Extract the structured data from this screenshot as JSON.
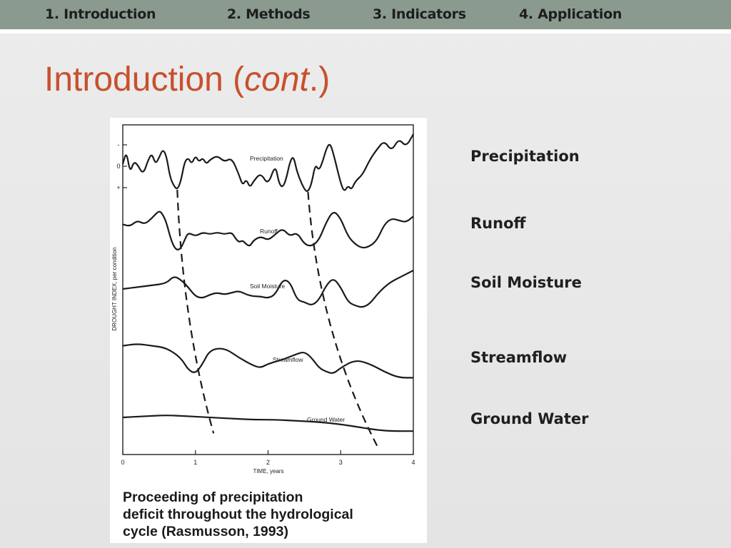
{
  "nav": {
    "items": [
      {
        "label": "1. Introduction",
        "active": true
      },
      {
        "label": "2. Methods",
        "active": false
      },
      {
        "label": "3. Indicators",
        "active": false
      },
      {
        "label": "4. Application",
        "active": false
      }
    ]
  },
  "title": {
    "main": "Introduction (",
    "italic": "cont",
    "tail": ".)"
  },
  "side_labels": [
    "Precipitation",
    "Runoff",
    "Soil Moisture",
    "Streamflow",
    "Ground Water"
  ],
  "figure": {
    "caption_lines": [
      "Proceeding of precipitation",
      "deficit throughout the hydrological",
      "cycle (Rasmusson, 1993)"
    ]
  },
  "colors": {
    "nav_bar": "#8a9a8f",
    "nav_active": "#f2e21a",
    "title": "#c8502e"
  },
  "chart_data": {
    "type": "line",
    "xlabel": "TIME, years",
    "ylabel": "DROUGHT INDEX, per condition",
    "xlim": [
      0,
      4
    ],
    "x_ticks": [
      "0",
      "1",
      "2",
      "3",
      "4"
    ],
    "y_ticks": [
      "+",
      "0",
      "-"
    ],
    "grid": false,
    "series": [
      {
        "name": "Precipitation",
        "x": [
          0,
          0.05,
          0.1,
          0.15,
          0.2,
          0.28,
          0.35,
          0.4,
          0.45,
          0.5,
          0.55,
          0.6,
          0.65,
          0.7,
          0.75,
          0.8,
          0.85,
          0.9,
          0.95,
          1.0,
          1.05,
          1.1,
          1.15,
          1.2,
          1.3,
          1.4,
          1.5,
          1.6,
          1.65,
          1.7,
          1.75,
          1.8,
          1.9,
          2.0,
          2.1,
          2.15,
          2.2,
          2.25,
          2.3,
          2.35,
          2.4,
          2.5,
          2.55,
          2.6,
          2.65,
          2.7,
          2.75,
          2.8,
          2.85,
          2.9,
          3.0,
          3.05,
          3.1,
          3.15,
          3.2,
          3.3,
          3.4,
          3.5,
          3.6,
          3.7,
          3.8,
          3.9,
          4.0
        ],
        "y": [
          0.1,
          0.7,
          -0.3,
          0.2,
          0.1,
          -0.4,
          0.3,
          0.6,
          0.1,
          0.4,
          0.8,
          0.5,
          -0.5,
          -0.9,
          -1.1,
          -0.7,
          0.2,
          0.4,
          0.1,
          0.5,
          0.2,
          0.4,
          0.1,
          0.3,
          0.5,
          0.2,
          0.4,
          -0.4,
          -0.9,
          -0.6,
          -1.0,
          -0.7,
          -0.3,
          -0.9,
          0.1,
          -0.8,
          -1.0,
          -0.6,
          0.2,
          0.5,
          -0.3,
          -1.1,
          -1.2,
          -0.8,
          0.1,
          -0.2,
          0.2,
          0.8,
          1.1,
          0.6,
          -0.8,
          -1.2,
          -0.9,
          -1.1,
          -0.7,
          -0.4,
          0.3,
          0.8,
          1.2,
          0.7,
          1.3,
          0.9,
          1.5
        ]
      },
      {
        "name": "Runoff",
        "x": [
          0,
          0.1,
          0.2,
          0.3,
          0.4,
          0.5,
          0.55,
          0.6,
          0.65,
          0.7,
          0.75,
          0.8,
          0.85,
          0.9,
          1.0,
          1.1,
          1.2,
          1.3,
          1.4,
          1.5,
          1.55,
          1.6,
          1.65,
          1.7,
          1.75,
          1.8,
          1.9,
          2.0,
          2.1,
          2.2,
          2.3,
          2.4,
          2.5,
          2.6,
          2.7,
          2.8,
          2.9,
          3.0,
          3.1,
          3.2,
          3.3,
          3.4,
          3.5,
          3.6,
          3.7,
          3.8,
          3.9,
          4.0
        ],
        "y": [
          0.2,
          0.1,
          0.4,
          0.2,
          0.5,
          0.9,
          0.7,
          0.3,
          -0.4,
          -0.9,
          -1.1,
          -1.0,
          -0.6,
          -0.2,
          -0.4,
          -0.2,
          -0.3,
          -0.2,
          -0.3,
          -0.2,
          -0.5,
          -0.7,
          -0.6,
          -0.8,
          -0.9,
          -0.6,
          -0.4,
          -0.6,
          -0.3,
          0.0,
          -0.4,
          -0.2,
          -0.8,
          -0.9,
          -0.6,
          0.3,
          0.9,
          0.5,
          -0.4,
          -0.8,
          -1.0,
          -0.9,
          -0.6,
          0.2,
          0.5,
          0.4,
          0.3,
          0.6
        ]
      },
      {
        "name": "Soil Moisture",
        "x": [
          0,
          0.2,
          0.4,
          0.6,
          0.7,
          0.8,
          0.9,
          1.0,
          1.1,
          1.2,
          1.3,
          1.4,
          1.5,
          1.6,
          1.7,
          1.8,
          1.9,
          2.0,
          2.1,
          2.2,
          2.3,
          2.4,
          2.5,
          2.6,
          2.7,
          2.8,
          2.9,
          3.0,
          3.1,
          3.2,
          3.3,
          3.4,
          3.5,
          3.6,
          3.7,
          3.8,
          3.9,
          4.0
        ],
        "y": [
          0.0,
          0.1,
          0.2,
          0.3,
          0.7,
          0.5,
          0.1,
          -0.4,
          -0.5,
          -0.3,
          -0.2,
          -0.3,
          -0.2,
          -0.1,
          -0.3,
          -0.4,
          -0.4,
          -0.5,
          -0.3,
          0.5,
          0.4,
          -0.6,
          -0.7,
          -0.9,
          -0.6,
          0.2,
          0.6,
          0.1,
          -0.7,
          -0.9,
          -1.0,
          -0.8,
          -0.3,
          0.1,
          0.4,
          0.6,
          0.8,
          1.0
        ]
      },
      {
        "name": "Streamflow",
        "x": [
          0,
          0.2,
          0.4,
          0.6,
          0.8,
          0.9,
          1.0,
          1.1,
          1.2,
          1.4,
          1.6,
          1.8,
          1.9,
          2.0,
          2.2,
          2.4,
          2.5,
          2.6,
          2.7,
          2.8,
          2.9,
          3.0,
          3.2,
          3.4,
          3.6,
          3.8,
          4.0
        ],
        "y": [
          0.3,
          0.4,
          0.3,
          0.2,
          -0.3,
          -0.9,
          -1.1,
          -0.6,
          0.1,
          0.2,
          -0.3,
          -0.7,
          -0.8,
          -0.6,
          -0.4,
          -0.1,
          0.0,
          -0.3,
          -0.8,
          -1.0,
          -1.1,
          -0.8,
          -0.4,
          -0.6,
          -1.0,
          -1.3,
          -1.3
        ]
      },
      {
        "name": "Ground Water",
        "x": [
          0,
          0.3,
          0.6,
          0.9,
          1.2,
          1.5,
          1.8,
          2.1,
          2.4,
          2.7,
          3.0,
          3.3,
          3.5,
          3.7,
          4.0
        ],
        "y": [
          0.0,
          0.1,
          0.2,
          0.1,
          0.0,
          -0.1,
          -0.2,
          -0.2,
          -0.3,
          -0.4,
          -0.6,
          -0.9,
          -1.1,
          -1.2,
          -1.2
        ]
      }
    ],
    "annotations": [
      {
        "type": "dashed-lag-line",
        "points": [
          [
            0.75,
            "Precipitation"
          ],
          [
            1.25,
            "Ground Water"
          ]
        ]
      },
      {
        "type": "dashed-lag-line",
        "points": [
          [
            2.55,
            "Precipitation"
          ],
          [
            3.5,
            "Ground Water"
          ]
        ]
      }
    ]
  }
}
